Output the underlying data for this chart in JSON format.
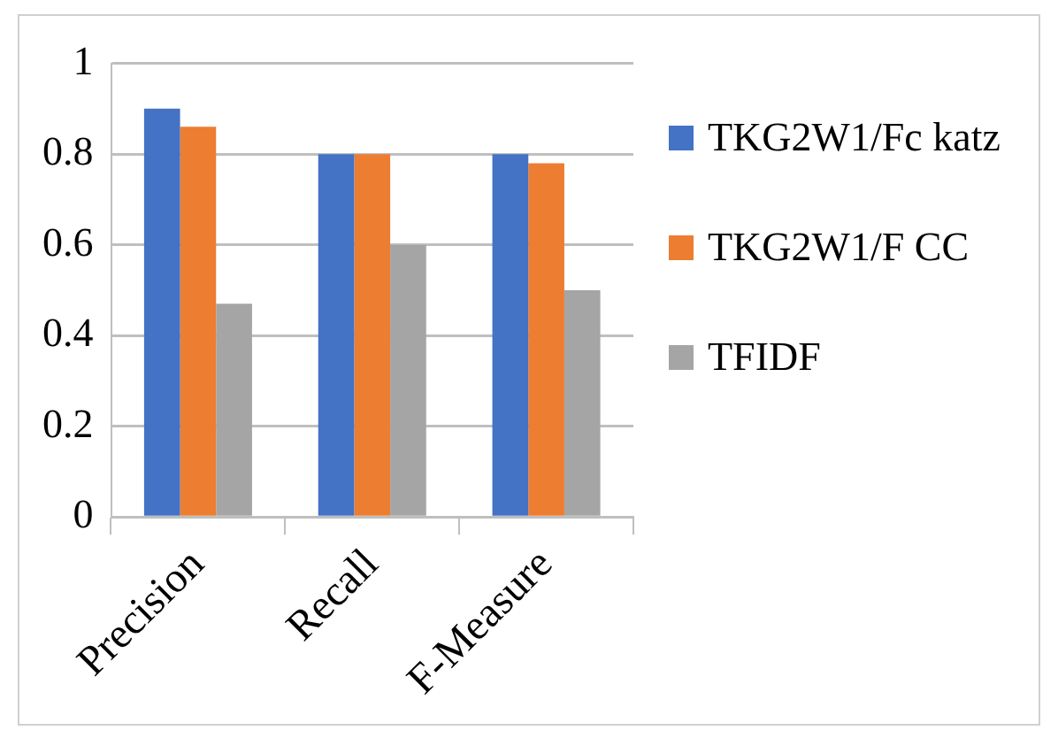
{
  "chart_data": {
    "type": "bar",
    "categories": [
      "Precision",
      "Recall",
      "F-Measure"
    ],
    "series": [
      {
        "name": "TKG2W1/Fc katz",
        "color": "#4472c4",
        "values": [
          0.9,
          0.8,
          0.8
        ]
      },
      {
        "name": "TKG2W1/F CC",
        "color": "#ed7d31",
        "values": [
          0.86,
          0.8,
          0.78
        ]
      },
      {
        "name": "TFIDF",
        "color": "#a5a5a5",
        "values": [
          0.47,
          0.6,
          0.5
        ]
      }
    ],
    "ylim": [
      0,
      1
    ],
    "yticks": [
      0,
      0.2,
      0.4,
      0.6,
      0.8,
      1
    ],
    "grid": "y",
    "legend": "right"
  }
}
